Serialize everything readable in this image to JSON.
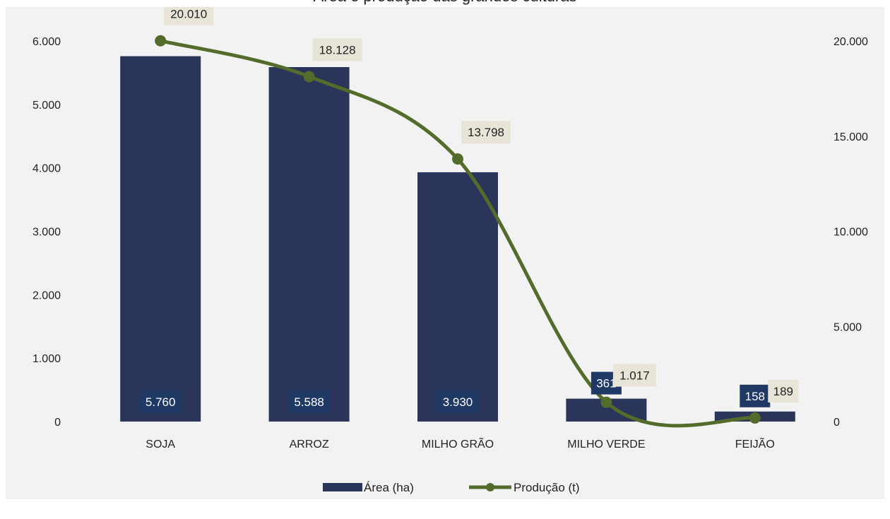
{
  "chart_data": {
    "title": "Área e produção das grandes culturas",
    "type": "bar",
    "categories": [
      "SOJA",
      "ARROZ",
      "MILHO GRÃO",
      "MILHO VERDE",
      "FEIJÃO"
    ],
    "series": [
      {
        "name": "Área (ha)",
        "type": "bar",
        "axis": "left",
        "values": [
          5760,
          5588,
          3930,
          361,
          158
        ],
        "labels": [
          "5.760",
          "5.588",
          "3.930",
          "361",
          "158"
        ],
        "color": "#2b3459"
      },
      {
        "name": "Produção (t)",
        "type": "line",
        "axis": "right",
        "values": [
          20010,
          18128,
          13798,
          1017,
          189
        ],
        "labels": [
          "20.010",
          "18.128",
          "13.798",
          "1.017",
          "189"
        ],
        "color": "#536b2b"
      }
    ],
    "y_left": {
      "min": 0,
      "max": 6000,
      "ticks": [
        0,
        1000,
        2000,
        3000,
        4000,
        5000,
        6000
      ],
      "tick_labels": [
        "0",
        "1.000",
        "2.000",
        "3.000",
        "4.000",
        "5.000",
        "6.000"
      ]
    },
    "y_right": {
      "min": 0,
      "max": 20000,
      "ticks": [
        0,
        5000,
        10000,
        15000,
        20000
      ],
      "tick_labels": [
        "0",
        "5.000",
        "10.000",
        "15.000",
        "20.000"
      ]
    },
    "legend_position": "bottom",
    "grid": false,
    "colors": {
      "background": "#f2f2f2",
      "label_box": "#e8e4d8",
      "bar_label_box": "#1f3864"
    }
  }
}
